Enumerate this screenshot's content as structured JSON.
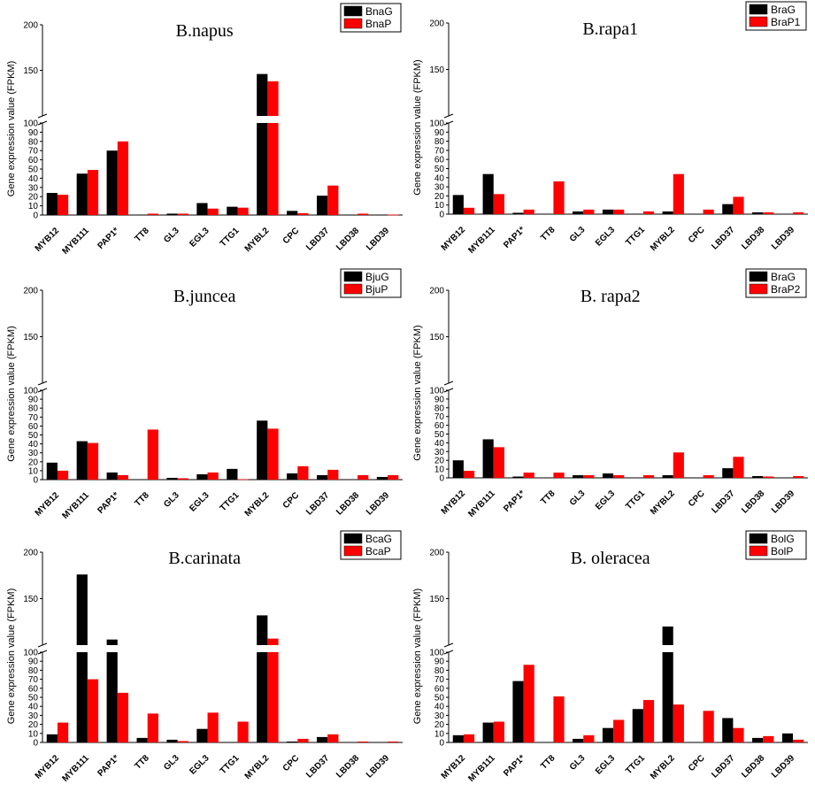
{
  "figure": {
    "ylabel": "Gene expression value (FPKM)",
    "categories": [
      "MYB12",
      "MYB111",
      "PAP1*",
      "TT8",
      "GL3",
      "EGL3",
      "TTG1",
      "MYBL2",
      "CPC",
      "LBD37",
      "LBD38",
      "LBD39"
    ],
    "lower_ticks": [
      "0",
      "10",
      "20",
      "30",
      "40",
      "50",
      "60",
      "70",
      "80",
      "90",
      "100"
    ],
    "upper_ticks": [
      "150",
      "200"
    ]
  },
  "chart_data": [
    {
      "type": "bar",
      "title": "B.napus",
      "categories": [
        "MYB12",
        "MYB111",
        "PAP1*",
        "TT8",
        "GL3",
        "EGL3",
        "TTG1",
        "MYBL2",
        "CPC",
        "LBD37",
        "LBD38",
        "LBD39"
      ],
      "series": [
        {
          "name": "BnaG",
          "color": "#000000",
          "values": [
            24,
            45,
            70,
            0.5,
            1.5,
            13,
            9,
            146,
            4.5,
            21,
            0.5,
            0.5
          ]
        },
        {
          "name": "BnaP",
          "color": "#ff0000",
          "values": [
            22,
            49,
            80,
            1.5,
            1.5,
            7,
            8,
            138,
            2,
            32,
            1.5,
            0.5
          ]
        }
      ],
      "ylabel": "Gene expression value (FPKM)",
      "ylim": [
        0,
        200
      ],
      "axis_break": [
        100,
        100
      ]
    },
    {
      "type": "bar",
      "title": "B.rapa1",
      "categories": [
        "MYB12",
        "MYB111",
        "PAP1*",
        "TT8",
        "GL3",
        "EGL3",
        "TTG1",
        "MYBL2",
        "CPC",
        "LBD37",
        "LBD38",
        "LBD39"
      ],
      "series": [
        {
          "name": "BraG",
          "color": "#000000",
          "values": [
            21,
            44,
            1.5,
            0.3,
            3,
            5,
            0.5,
            3,
            0.3,
            11,
            2,
            0.3
          ]
        },
        {
          "name": "BraP1",
          "color": "#ff0000",
          "values": [
            7,
            22,
            5,
            36,
            5,
            5,
            3,
            44,
            5,
            19,
            2,
            2
          ]
        }
      ],
      "ylabel": "Gene expression value (FPKM)",
      "ylim": [
        0,
        200
      ],
      "axis_break": [
        100,
        100
      ]
    },
    {
      "type": "bar",
      "title": "B.juncea",
      "categories": [
        "MYB12",
        "MYB111",
        "PAP1*",
        "TT8",
        "GL3",
        "EGL3",
        "TTG1",
        "MYBL2",
        "CPC",
        "LBD37",
        "LBD38",
        "LBD39"
      ],
      "series": [
        {
          "name": "BjuG",
          "color": "#000000",
          "values": [
            19,
            43,
            8,
            0.5,
            2,
            6,
            12,
            66,
            7,
            5,
            0.3,
            3
          ]
        },
        {
          "name": "BjuP",
          "color": "#ff0000",
          "values": [
            10,
            41,
            5,
            56,
            1.5,
            8,
            0.5,
            57,
            15,
            11,
            5,
            5
          ]
        }
      ],
      "ylabel": "Gene expression value (FPKM)",
      "ylim": [
        0,
        200
      ],
      "axis_break": [
        100,
        100
      ]
    },
    {
      "type": "bar",
      "title": "B. rapa2",
      "categories": [
        "MYB12",
        "MYB111",
        "PAP1*",
        "TT8",
        "GL3",
        "EGL3",
        "TTG1",
        "MYBL2",
        "CPC",
        "LBD37",
        "LBD38",
        "LBD39"
      ],
      "series": [
        {
          "name": "BraG",
          "color": "#000000",
          "values": [
            20,
            44,
            1.5,
            0.3,
            3,
            5,
            0.5,
            3,
            0.3,
            11,
            2,
            0.3
          ]
        },
        {
          "name": "BraP2",
          "color": "#ff0000",
          "values": [
            8,
            35,
            6,
            6,
            3,
            3,
            3,
            29,
            3,
            24,
            1.5,
            2
          ]
        }
      ],
      "ylabel": "Gene expression value (FPKM)",
      "ylim": [
        0,
        200
      ],
      "axis_break": [
        100,
        100
      ]
    },
    {
      "type": "bar",
      "title": "B.carinata",
      "categories": [
        "MYB12",
        "MYB111",
        "PAP1*",
        "TT8",
        "GL3",
        "EGL3",
        "TTG1",
        "MYBL2",
        "CPC",
        "LBD37",
        "LBD38",
        "LBD39"
      ],
      "series": [
        {
          "name": "BcaG",
          "color": "#000000",
          "values": [
            9,
            176,
            106,
            5,
            3,
            15,
            0.5,
            132,
            1,
            6,
            0.3,
            0.3
          ]
        },
        {
          "name": "BcaP",
          "color": "#ff0000",
          "values": [
            22,
            70,
            55,
            32,
            1.5,
            33,
            23,
            107,
            4,
            9,
            1,
            1
          ]
        }
      ],
      "ylabel": "Gene expression value (FPKM)",
      "ylim": [
        0,
        200
      ],
      "axis_break": [
        100,
        100
      ]
    },
    {
      "type": "bar",
      "title": "B. oleracea",
      "categories": [
        "MYB12",
        "MYB111",
        "PAP1*",
        "TT8",
        "GL3",
        "EGL3",
        "TTG1",
        "MYBL2",
        "CPC",
        "LBD37",
        "LBD38",
        "LBD39"
      ],
      "series": [
        {
          "name": "BolG",
          "color": "#000000",
          "values": [
            8,
            22,
            68,
            0.5,
            4,
            16,
            37,
            120,
            0.5,
            27,
            5,
            10
          ]
        },
        {
          "name": "BolP",
          "color": "#ff0000",
          "values": [
            9,
            23,
            86,
            51,
            8,
            25,
            47,
            42,
            35,
            16,
            7,
            3
          ]
        }
      ],
      "ylabel": "Gene expression value (FPKM)",
      "ylim": [
        0,
        200
      ],
      "axis_break": [
        100,
        100
      ]
    }
  ]
}
